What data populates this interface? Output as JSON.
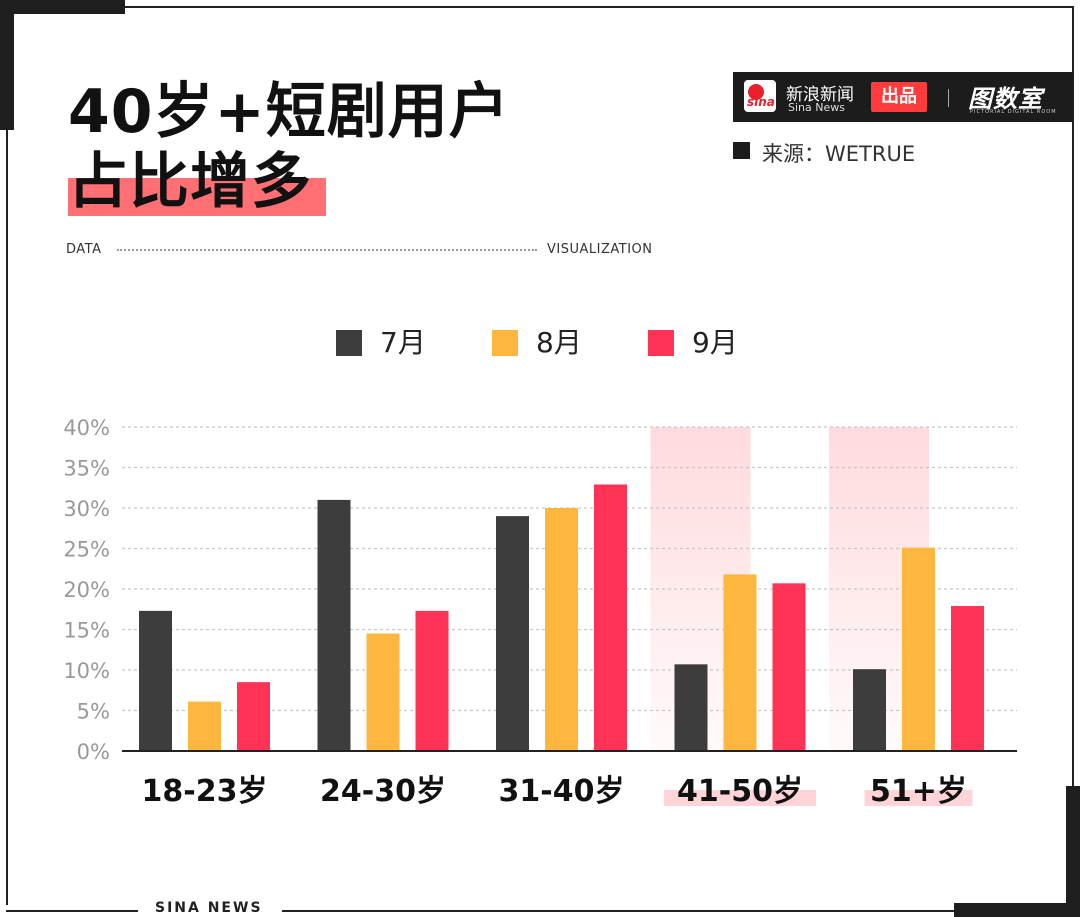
{
  "title": {
    "line1": "40岁+短剧用户",
    "line2": "占比增多"
  },
  "tagline": {
    "left": "DATA",
    "right": "VISUALIZATION"
  },
  "brand": {
    "sina_logo": "sina",
    "name_cn": "新浪新闻",
    "name_en": "Sina News",
    "badge": "出品",
    "partner": "图数室",
    "partner_sub": "PICTORIAL DIGITAL ROOM"
  },
  "source": "来源：WETRUE",
  "footer": "SINA NEWS",
  "colors": {
    "series_7": "#3d3d3d",
    "series_8": "#fdb73e",
    "series_9": "#ff3355",
    "highlight": "#ffd4d8",
    "title_highlight": "#ff6f73"
  },
  "chart_data": {
    "type": "bar",
    "title": "40岁+短剧用户占比增多",
    "categories": [
      "18-23岁",
      "24-30岁",
      "31-40岁",
      "41-50岁",
      "51+岁"
    ],
    "series": [
      {
        "name": "7月",
        "values": [
          17.3,
          31.0,
          29.0,
          10.7,
          10.1
        ]
      },
      {
        "name": "8月",
        "values": [
          6.1,
          14.5,
          30.0,
          21.8,
          25.1
        ]
      },
      {
        "name": "9月",
        "values": [
          8.5,
          17.3,
          32.9,
          20.7,
          17.9
        ]
      }
    ],
    "ylim": [
      0,
      40
    ],
    "yticks": [
      "0%",
      "5%",
      "10%",
      "15%",
      "20%",
      "25%",
      "30%",
      "35%",
      "40%"
    ],
    "highlighted_categories": [
      "41-50岁",
      "51+岁"
    ],
    "grid": true,
    "legend_position": "top-center",
    "xlabel": "",
    "ylabel": ""
  }
}
